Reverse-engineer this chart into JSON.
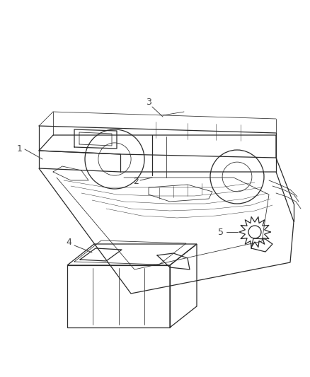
{
  "background_color": "#ffffff",
  "line_color": "#2a2a2a",
  "label_color": "#444444",
  "fig_width": 4.38,
  "fig_height": 5.33,
  "dpi": 100
}
